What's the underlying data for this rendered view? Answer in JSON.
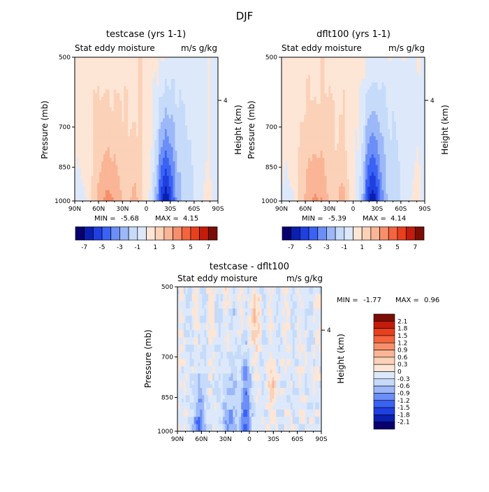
{
  "figure": {
    "title": "DJF"
  },
  "colors": {
    "neg": [
      "#08006e",
      "#0a1fb0",
      "#1f3fe0",
      "#3a62f5",
      "#6b8ef7",
      "#9db8f8",
      "#c6dbfa",
      "#dde9fb"
    ],
    "pos": [
      "#fde6d6",
      "#fbd1b8",
      "#f9b596",
      "#f78f6a",
      "#f3643f",
      "#e8401c",
      "#c41c0a",
      "#7a0d06"
    ]
  },
  "chart_data": [
    {
      "type": "heatmap",
      "title": "testcase (yrs 1-1)",
      "subtitle_left": "Stat eddy moisture",
      "subtitle_right": "m/s g/kg",
      "ylabel": "Pressure (mb)",
      "ylabel_right": "Height (km)",
      "right_ticks": [
        "4"
      ],
      "x_ticks": [
        "90N",
        "60N",
        "30N",
        "0",
        "30S",
        "60S",
        "90S"
      ],
      "y_ticks": [
        "500",
        "700",
        "850",
        "1000"
      ],
      "min_label": "MIN =",
      "min": "-5.68",
      "max_label": "MAX =",
      "max": "4.15",
      "colorbar_labels": [
        "-7",
        "-5",
        "-3",
        "-1",
        "1",
        "3",
        "5",
        "7"
      ]
    },
    {
      "type": "heatmap",
      "title": "dflt100 (yrs 1-1)",
      "subtitle_left": "Stat eddy moisture",
      "subtitle_right": "m/s g/kg",
      "ylabel": "Pressure (mb)",
      "ylabel_right": "Height (km)",
      "right_ticks": [
        "4"
      ],
      "x_ticks": [
        "90N",
        "60N",
        "30N",
        "0",
        "30S",
        "60S",
        "90S"
      ],
      "y_ticks": [
        "500",
        "700",
        "850",
        "1000"
      ],
      "min_label": "MIN =",
      "min": "-5.39",
      "max_label": "MAX =",
      "max": "4.14",
      "colorbar_labels": [
        "-7",
        "-5",
        "-3",
        "-1",
        "1",
        "3",
        "5",
        "7"
      ]
    },
    {
      "type": "heatmap",
      "title": "testcase - dflt100",
      "subtitle_left": "Stat eddy moisture",
      "subtitle_right": "m/s g/kg",
      "ylabel": "Pressure (mb)",
      "ylabel_right": "Height (km)",
      "right_ticks": [
        "4"
      ],
      "x_ticks": [
        "90N",
        "60N",
        "30N",
        "0",
        "30S",
        "60S",
        "90S"
      ],
      "y_ticks": [
        "500",
        "700",
        "850",
        "1000"
      ],
      "min_label": "MIN =",
      "min": "-1.77",
      "max_label": "MAX =",
      "max": "0.96",
      "colorbar_labels": [
        "2.1",
        "1.8",
        "1.5",
        "1.2",
        "0.9",
        "0.6",
        "0.3",
        "0",
        "-0.3",
        "-0.6",
        "-0.9",
        "-1.2",
        "-1.5",
        "-1.8",
        "-2.1"
      ]
    }
  ]
}
